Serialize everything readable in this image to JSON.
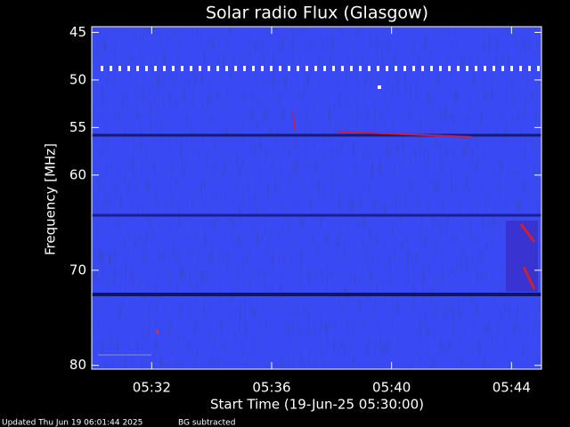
{
  "chart_data": {
    "type": "spectrogram",
    "title": "Solar radio Flux (Glasgow)",
    "ylabel": "Frequency [MHz]",
    "xlabel": "Start Time (19-Jun-25 05:30:00)",
    "ylim": [
      80.4,
      44.4
    ],
    "yticks": [
      45,
      50,
      55,
      60,
      70,
      80
    ],
    "xlim": [
      0,
      15
    ],
    "xticks": [
      {
        "value": 2,
        "label": "05:32"
      },
      {
        "value": 6,
        "label": "05:36"
      },
      {
        "value": 10,
        "label": "05:40"
      },
      {
        "value": 14,
        "label": "05:44"
      }
    ],
    "annotations": [
      "Updated Thu Jun 19 06:01:44 2025",
      "BG subtracted"
    ]
  }
}
